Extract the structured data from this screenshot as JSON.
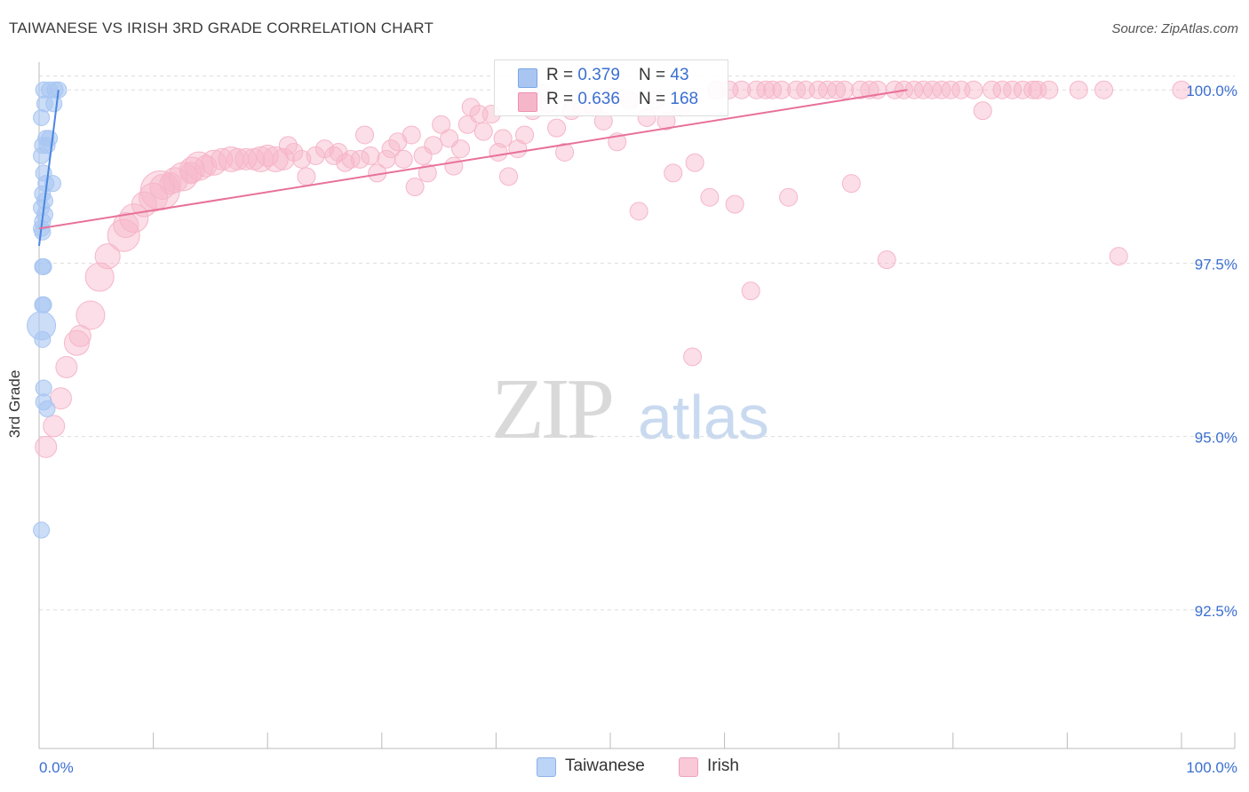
{
  "title": "TAIWANESE VS IRISH 3RD GRADE CORRELATION CHART",
  "source": "Source: ZipAtlas.com",
  "watermark": {
    "zip": "ZIP",
    "atlas": "atlas"
  },
  "legend": {
    "rows": [
      {
        "r_label": "R = ",
        "r_value": "0.379",
        "n_label": "N = ",
        "n_value": "43",
        "color": "#a9c6f2"
      },
      {
        "r_label": "R = ",
        "r_value": "0.636",
        "n_label": "N = ",
        "n_value": "168",
        "color": "#f6b6c9"
      }
    ]
  },
  "bottom_legend": [
    {
      "label": "Taiwanese",
      "color": "#bcd4f6"
    },
    {
      "label": "Irish",
      "color": "#f9c9d8"
    }
  ],
  "chart_data": {
    "type": "scatter",
    "title": "TAIWANESE VS IRISH 3RD GRADE CORRELATION CHART",
    "xlabel": "",
    "ylabel": "3rd Grade",
    "xlim": [
      0,
      100
    ],
    "ylim": [
      90.5,
      100.4
    ],
    "x_tick_labels": [
      "0.0%",
      "100.0%"
    ],
    "y_ticks": [
      92.5,
      95.0,
      97.5,
      100.0
    ],
    "y_tick_labels": [
      "92.5%",
      "95.0%",
      "97.5%",
      "100.0%"
    ],
    "grid": true,
    "series": [
      {
        "name": "Taiwanese",
        "color": "#4a86e0",
        "fill": "#a9c6f2",
        "trend": {
          "x1": 0.0,
          "y1": 97.75,
          "x2": 1.7,
          "y2": 100.0
        },
        "points": [
          [
            0.4,
            100.0,
            9
          ],
          [
            0.9,
            100.0,
            9
          ],
          [
            1.4,
            100.0,
            9
          ],
          [
            1.7,
            100.0,
            9
          ],
          [
            0.5,
            99.8,
            9
          ],
          [
            1.3,
            99.8,
            9
          ],
          [
            0.2,
            99.6,
            9
          ],
          [
            0.6,
            99.3,
            9
          ],
          [
            0.9,
            99.3,
            9
          ],
          [
            0.3,
            99.2,
            9
          ],
          [
            0.7,
            99.2,
            9
          ],
          [
            0.2,
            99.05,
            9
          ],
          [
            0.4,
            98.8,
            9
          ],
          [
            0.6,
            98.65,
            9
          ],
          [
            1.2,
            98.65,
            9
          ],
          [
            0.3,
            98.5,
            9
          ],
          [
            0.5,
            98.4,
            9
          ],
          [
            0.2,
            98.3,
            9
          ],
          [
            0.5,
            98.2,
            9
          ],
          [
            0.3,
            98.1,
            9
          ],
          [
            0.2,
            98.0,
            9
          ],
          [
            0.3,
            97.95,
            9
          ],
          [
            0.4,
            97.45,
            9
          ],
          [
            0.3,
            97.45,
            9
          ],
          [
            0.3,
            96.9,
            9
          ],
          [
            0.4,
            96.9,
            9
          ],
          [
            0.2,
            96.6,
            16
          ],
          [
            0.3,
            96.4,
            9
          ],
          [
            0.4,
            95.7,
            9
          ],
          [
            0.4,
            95.5,
            9
          ],
          [
            0.7,
            95.4,
            9
          ],
          [
            0.2,
            93.65,
            9
          ]
        ]
      },
      {
        "name": "Irish",
        "color": "#e8719a",
        "fill": "#f6b6c9",
        "trend": {
          "x1": 0.0,
          "y1": 98.0,
          "x2": 76.0,
          "y2": 100.0
        },
        "points": [
          [
            0.6,
            94.85,
            12
          ],
          [
            1.3,
            95.15,
            12
          ],
          [
            1.9,
            95.55,
            12
          ],
          [
            2.4,
            96.0,
            12
          ],
          [
            3.3,
            96.35,
            14
          ],
          [
            3.6,
            96.45,
            12
          ],
          [
            4.5,
            96.75,
            16
          ],
          [
            5.3,
            97.3,
            16
          ],
          [
            6.0,
            97.6,
            14
          ],
          [
            7.4,
            97.9,
            18
          ],
          [
            7.6,
            98.05,
            14
          ],
          [
            8.3,
            98.15,
            16
          ],
          [
            9.2,
            98.35,
            14
          ],
          [
            10.0,
            98.45,
            16
          ],
          [
            10.6,
            98.55,
            22
          ],
          [
            10.8,
            98.6,
            14
          ],
          [
            11.5,
            98.65,
            12
          ],
          [
            11.9,
            98.7,
            14
          ],
          [
            12.6,
            98.75,
            16
          ],
          [
            13.3,
            98.8,
            12
          ],
          [
            13.4,
            98.85,
            14
          ],
          [
            14.0,
            98.9,
            16
          ],
          [
            14.6,
            98.9,
            12
          ],
          [
            15.3,
            98.95,
            14
          ],
          [
            16.0,
            99.0,
            12
          ],
          [
            16.8,
            99.0,
            14
          ],
          [
            17.4,
            99.0,
            12
          ],
          [
            18.1,
            99.0,
            12
          ],
          [
            18.8,
            99.0,
            12
          ],
          [
            19.4,
            99.0,
            14
          ],
          [
            20.0,
            99.05,
            12
          ],
          [
            20.7,
            99.0,
            14
          ],
          [
            21.4,
            99.0,
            12
          ],
          [
            21.8,
            99.2,
            10
          ],
          [
            22.3,
            99.1,
            10
          ],
          [
            23.0,
            99.0,
            10
          ],
          [
            23.4,
            98.75,
            10
          ],
          [
            24.2,
            99.05,
            10
          ],
          [
            25.0,
            99.15,
            10
          ],
          [
            25.8,
            99.05,
            10
          ],
          [
            26.2,
            99.1,
            10
          ],
          [
            26.8,
            98.95,
            10
          ],
          [
            27.3,
            99.0,
            10
          ],
          [
            28.1,
            99.0,
            10
          ],
          [
            28.5,
            99.35,
            10
          ],
          [
            29.0,
            99.05,
            10
          ],
          [
            29.6,
            98.8,
            10
          ],
          [
            30.4,
            99.0,
            10
          ],
          [
            30.8,
            99.15,
            10
          ],
          [
            31.4,
            99.25,
            10
          ],
          [
            31.9,
            99.0,
            10
          ],
          [
            32.6,
            99.35,
            10
          ],
          [
            32.9,
            98.6,
            10
          ],
          [
            33.6,
            99.05,
            10
          ],
          [
            34.0,
            98.8,
            10
          ],
          [
            34.5,
            99.2,
            10
          ],
          [
            35.2,
            99.5,
            10
          ],
          [
            35.9,
            99.3,
            10
          ],
          [
            36.3,
            98.9,
            10
          ],
          [
            36.9,
            99.15,
            10
          ],
          [
            37.5,
            99.5,
            10
          ],
          [
            37.8,
            99.75,
            10
          ],
          [
            38.5,
            99.65,
            10
          ],
          [
            38.9,
            99.4,
            10
          ],
          [
            39.6,
            99.65,
            10
          ],
          [
            40.2,
            99.1,
            10
          ],
          [
            40.6,
            99.3,
            10
          ],
          [
            41.1,
            98.75,
            10
          ],
          [
            41.9,
            99.15,
            10
          ],
          [
            42.5,
            99.35,
            10
          ],
          [
            43.2,
            99.7,
            10
          ],
          [
            44.0,
            99.95,
            10
          ],
          [
            44.6,
            99.8,
            10
          ],
          [
            45.3,
            99.45,
            10
          ],
          [
            46.0,
            99.1,
            10
          ],
          [
            46.6,
            99.7,
            10
          ],
          [
            47.5,
            99.75,
            10
          ],
          [
            48.5,
            99.75,
            10
          ],
          [
            49.4,
            99.55,
            10
          ],
          [
            50.1,
            99.9,
            10
          ],
          [
            50.6,
            99.25,
            10
          ],
          [
            51.7,
            99.85,
            10
          ],
          [
            52.5,
            98.25,
            10
          ],
          [
            53.2,
            99.6,
            10
          ],
          [
            54.0,
            99.85,
            10
          ],
          [
            54.9,
            99.55,
            10
          ],
          [
            55.5,
            98.8,
            10
          ],
          [
            56.2,
            99.75,
            10
          ],
          [
            57.2,
            96.15,
            10
          ],
          [
            57.4,
            98.95,
            10
          ],
          [
            58.7,
            98.45,
            10
          ],
          [
            59.3,
            100.0,
            10
          ],
          [
            60.4,
            100.0,
            10
          ],
          [
            60.9,
            98.35,
            10
          ],
          [
            61.5,
            100.0,
            10
          ],
          [
            62.3,
            97.1,
            10
          ],
          [
            62.8,
            100.0,
            10
          ],
          [
            63.6,
            100.0,
            10
          ],
          [
            64.2,
            100.0,
            10
          ],
          [
            65.0,
            100.0,
            10
          ],
          [
            65.6,
            98.45,
            10
          ],
          [
            66.3,
            100.0,
            10
          ],
          [
            67.1,
            100.0,
            10
          ],
          [
            68.2,
            100.0,
            10
          ],
          [
            69.0,
            100.0,
            10
          ],
          [
            69.8,
            100.0,
            10
          ],
          [
            70.5,
            100.0,
            10
          ],
          [
            71.1,
            98.65,
            10
          ],
          [
            71.9,
            100.0,
            10
          ],
          [
            72.7,
            100.0,
            10
          ],
          [
            73.4,
            100.0,
            10
          ],
          [
            74.2,
            97.55,
            10
          ],
          [
            74.9,
            100.0,
            10
          ],
          [
            75.7,
            100.0,
            10
          ],
          [
            76.6,
            100.0,
            10
          ],
          [
            77.4,
            100.0,
            10
          ],
          [
            78.2,
            100.0,
            10
          ],
          [
            79.0,
            100.0,
            10
          ],
          [
            79.8,
            100.0,
            10
          ],
          [
            80.7,
            100.0,
            10
          ],
          [
            81.8,
            100.0,
            10
          ],
          [
            82.6,
            99.7,
            10
          ],
          [
            83.4,
            100.0,
            10
          ],
          [
            84.3,
            100.0,
            10
          ],
          [
            85.2,
            100.0,
            10
          ],
          [
            86.1,
            100.0,
            10
          ],
          [
            87.0,
            100.0,
            10
          ],
          [
            87.4,
            100.0,
            10
          ],
          [
            88.4,
            100.0,
            10
          ],
          [
            91.0,
            100.0,
            10
          ],
          [
            93.2,
            100.0,
            10
          ],
          [
            94.5,
            97.6,
            10
          ],
          [
            100.0,
            100.0,
            10
          ]
        ]
      }
    ]
  }
}
